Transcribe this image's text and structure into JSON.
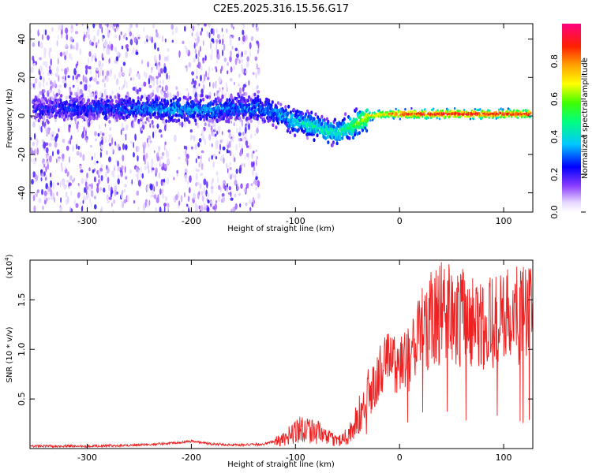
{
  "page": {
    "title": "C2E5.2025.316.15.56.G17"
  },
  "colors": {
    "snr_line": "#ee2222",
    "axis": "#000000"
  },
  "chart_data": [
    {
      "type": "heatmap",
      "title": "C2E5.2025.316.15.56.G17",
      "xlabel": "Height of straight line (km)",
      "ylabel": "Frequency (Hz)",
      "xlim": [
        -355,
        128
      ],
      "ylim": [
        -50,
        48
      ],
      "x_ticks": [
        -300,
        -200,
        -100,
        0,
        100
      ],
      "y_ticks": [
        -40,
        -20,
        0,
        20,
        40
      ],
      "x_tick_labels": [
        "-300",
        "-200",
        "-100",
        "0",
        "100"
      ],
      "y_tick_labels": [
        "-40",
        "-20",
        "0",
        "20",
        "40"
      ],
      "colorbar": {
        "label": "Normalized spectral amplitude",
        "range": [
          0,
          1
        ],
        "ticks": [
          0.0,
          0.2,
          0.4,
          0.6,
          0.8
        ],
        "tick_labels": [
          "0.0",
          "0.2",
          "0.4",
          "0.6",
          "0.8"
        ]
      },
      "ridge": {
        "description": "Doppler ridge of peak spectral amplitude",
        "heights_km": [
          -350,
          -300,
          -250,
          -200,
          -150,
          -135,
          -120,
          -100,
          -80,
          -60,
          -45,
          -30,
          -10,
          0,
          50,
          125
        ],
        "frequency_hz": [
          4,
          4,
          4,
          3,
          4,
          4,
          2,
          -3,
          -6,
          -9,
          -5,
          0,
          1,
          1,
          1,
          1
        ],
        "amplitude": [
          0.22,
          0.25,
          0.3,
          0.35,
          0.3,
          0.32,
          0.35,
          0.4,
          0.45,
          0.45,
          0.55,
          0.7,
          0.8,
          0.9,
          0.95,
          0.9
        ]
      },
      "scatter_region": {
        "x_range_km": [
          -355,
          -135
        ],
        "description": "Broadband low-amplitude noise"
      }
    },
    {
      "type": "line",
      "xlabel": "Height of straight line (km)",
      "ylabel": "SNR (10 * v/v)",
      "y_multiplier_label": "(x10",
      "y_multiplier_exp": "4",
      "xlim": [
        -355,
        128
      ],
      "ylim": [
        0,
        1.9
      ],
      "x_ticks": [
        -300,
        -200,
        -100,
        0,
        100
      ],
      "y_ticks": [
        0.5,
        1.0,
        1.5
      ],
      "x_tick_labels": [
        "-300",
        "-200",
        "-100",
        "0",
        "100"
      ],
      "y_tick_labels": [
        "0.5",
        "1.0",
        "1.5"
      ],
      "series": [
        {
          "name": "SNR",
          "x": [
            -355,
            -300,
            -250,
            -220,
            -200,
            -180,
            -150,
            -130,
            -110,
            -100,
            -90,
            -80,
            -70,
            -60,
            -50,
            -40,
            -30,
            -20,
            -10,
            0,
            10,
            20,
            30,
            40,
            60,
            80,
            100,
            128
          ],
          "y": [
            0.02,
            0.02,
            0.03,
            0.05,
            0.07,
            0.04,
            0.03,
            0.04,
            0.1,
            0.2,
            0.22,
            0.18,
            0.12,
            0.08,
            0.14,
            0.3,
            0.5,
            0.75,
            0.9,
            0.85,
            0.95,
            1.2,
            1.35,
            1.4,
            1.35,
            1.3,
            1.35,
            1.4
          ]
        }
      ]
    }
  ]
}
